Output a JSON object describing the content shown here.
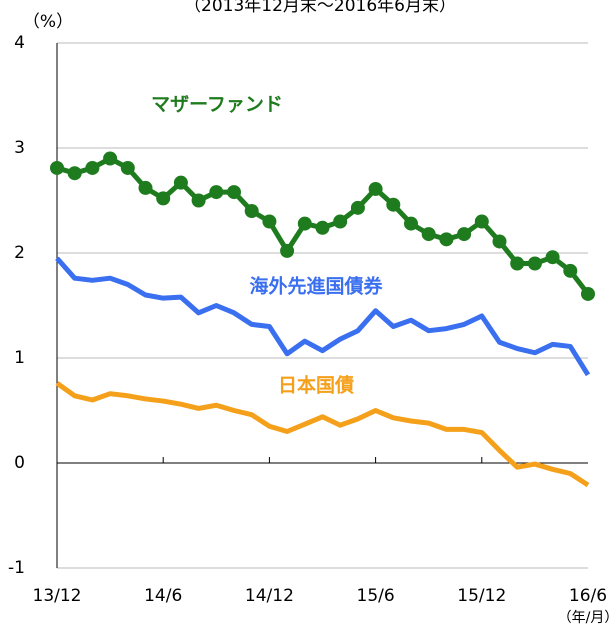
{
  "chart_data": {
    "type": "line",
    "subtitle": "（2013年12月末～2016年6月末）",
    "ylabel": "（%）",
    "xlabel": "（年/月）",
    "categories": [
      "13/12",
      null,
      null,
      null,
      null,
      null,
      "14/6",
      null,
      null,
      null,
      null,
      null,
      "14/12",
      null,
      null,
      null,
      null,
      null,
      "15/6",
      null,
      null,
      null,
      null,
      null,
      "15/12",
      null,
      null,
      null,
      null,
      null,
      "16/6"
    ],
    "series": [
      {
        "name": "マザーファンド",
        "color": "#1e7b1e",
        "markers": true,
        "values": [
          2.81,
          2.76,
          2.81,
          2.9,
          2.81,
          2.62,
          2.52,
          2.67,
          2.5,
          2.58,
          2.58,
          2.4,
          2.3,
          2.02,
          2.28,
          2.24,
          2.3,
          2.43,
          2.61,
          2.46,
          2.28,
          2.18,
          2.13,
          2.18,
          2.3,
          2.11,
          1.9,
          1.9,
          1.96,
          1.83,
          1.61
        ]
      },
      {
        "name": "海外先進国債券",
        "color": "#3a6ff0",
        "markers": false,
        "values": [
          1.95,
          1.76,
          1.74,
          1.76,
          1.7,
          1.6,
          1.57,
          1.58,
          1.43,
          1.5,
          1.43,
          1.32,
          1.3,
          1.04,
          1.16,
          1.07,
          1.18,
          1.26,
          1.45,
          1.3,
          1.36,
          1.26,
          1.28,
          1.32,
          1.4,
          1.15,
          1.09,
          1.05,
          1.13,
          1.11,
          0.84
        ]
      },
      {
        "name": "日本国債",
        "color": "#f5a01a",
        "markers": false,
        "values": [
          0.76,
          0.64,
          0.6,
          0.66,
          0.64,
          0.61,
          0.59,
          0.56,
          0.52,
          0.55,
          0.5,
          0.46,
          0.35,
          0.3,
          0.37,
          0.44,
          0.36,
          0.42,
          0.5,
          0.43,
          0.4,
          0.38,
          0.32,
          0.32,
          0.29,
          0.12,
          -0.04,
          -0.01,
          -0.06,
          -0.1,
          -0.21
        ]
      }
    ],
    "ylim": [
      -1,
      4
    ],
    "yticks": [
      -1,
      0,
      1,
      2,
      3,
      4
    ],
    "grid": true
  }
}
